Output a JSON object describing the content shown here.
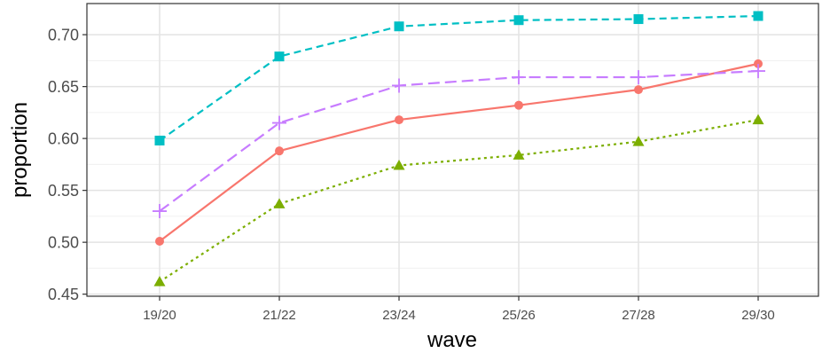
{
  "chart_data": {
    "type": "line",
    "title": "",
    "xlabel": "wave",
    "ylabel": "proportion",
    "categories": [
      "19/20",
      "21/22",
      "23/24",
      "25/26",
      "27/28",
      "29/30"
    ],
    "y_ticks": [
      0.45,
      0.5,
      0.55,
      0.6,
      0.65,
      0.7
    ],
    "y_tick_labels": [
      "0.45",
      "0.50",
      "0.55",
      "0.60",
      "0.65",
      "0.70"
    ],
    "ylim": [
      0.448,
      0.73
    ],
    "grid": true,
    "legend": "none",
    "series": [
      {
        "color": "#F8766D",
        "marker": "circle",
        "line": "solid",
        "values": [
          0.501,
          0.588,
          0.618,
          0.632,
          0.647,
          0.672
        ]
      },
      {
        "color": "#7CAE00",
        "marker": "triangle",
        "line": "dotted",
        "values": [
          0.462,
          0.537,
          0.574,
          0.584,
          0.597,
          0.618
        ]
      },
      {
        "color": "#00BFC4",
        "marker": "square",
        "line": "dashed",
        "values": [
          0.598,
          0.679,
          0.708,
          0.714,
          0.715,
          0.718
        ]
      },
      {
        "color": "#C77CFF",
        "marker": "plus",
        "line": "longdash",
        "values": [
          0.53,
          0.615,
          0.651,
          0.659,
          0.659,
          0.665
        ]
      }
    ]
  }
}
